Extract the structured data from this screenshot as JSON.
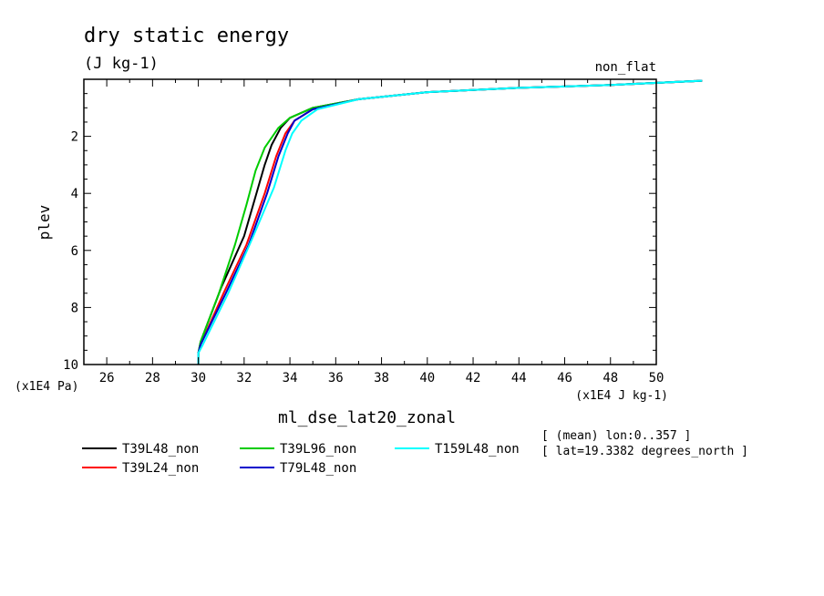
{
  "chart_data": {
    "type": "line",
    "title": "dry static energy",
    "units": "(J kg-1)",
    "corner_label": "non_flat",
    "xlabel": "ml_dse_lat20_zonal",
    "ylabel": "plev",
    "x_unit_label": "(x1E4 J kg-1)",
    "y_unit_label": "(x1E4 Pa)",
    "xlim": [
      25,
      50
    ],
    "ylim": [
      10,
      0
    ],
    "y_axis_inverted": true,
    "x_ticks": [
      26,
      28,
      30,
      32,
      34,
      36,
      38,
      40,
      42,
      44,
      46,
      48,
      50
    ],
    "y_ticks": [
      2,
      4,
      6,
      8,
      10
    ],
    "info_lines": [
      "[ (mean) lon:0..357 ]",
      "[ lat=19.3382 degrees_north ]"
    ],
    "series": [
      {
        "name": "T39L48_non",
        "color": "#000000",
        "points": [
          [
            30.0,
            10.0
          ],
          [
            30.0,
            9.6
          ],
          [
            30.1,
            9.2
          ],
          [
            31.0,
            7.3
          ],
          [
            32.0,
            5.5
          ],
          [
            32.9,
            3.0
          ],
          [
            33.2,
            2.3
          ],
          [
            33.6,
            1.7
          ],
          [
            34.0,
            1.35
          ],
          [
            35.0,
            1.0
          ],
          [
            37.0,
            0.7
          ],
          [
            40.0,
            0.45
          ],
          [
            44.0,
            0.3
          ],
          [
            48.0,
            0.2
          ],
          [
            52.0,
            0.05
          ]
        ]
      },
      {
        "name": "T39L24_non",
        "color": "#ff0000",
        "points": [
          [
            30.0,
            10.0
          ],
          [
            30.0,
            9.6
          ],
          [
            30.1,
            9.3
          ],
          [
            31.1,
            7.5
          ],
          [
            32.1,
            5.8
          ],
          [
            32.9,
            4.0
          ],
          [
            33.4,
            2.7
          ],
          [
            33.8,
            1.9
          ],
          [
            34.2,
            1.45
          ],
          [
            35.0,
            1.05
          ],
          [
            37.0,
            0.7
          ],
          [
            40.0,
            0.45
          ],
          [
            44.0,
            0.3
          ],
          [
            48.0,
            0.2
          ],
          [
            52.0,
            0.05
          ]
        ]
      },
      {
        "name": "T39L96_non",
        "color": "#00cc00",
        "points": [
          [
            30.0,
            10.0
          ],
          [
            30.0,
            9.6
          ],
          [
            30.1,
            9.2
          ],
          [
            30.9,
            7.5
          ],
          [
            31.6,
            5.8
          ],
          [
            32.1,
            4.4
          ],
          [
            32.5,
            3.2
          ],
          [
            32.9,
            2.4
          ],
          [
            33.5,
            1.7
          ],
          [
            34.0,
            1.35
          ],
          [
            35.0,
            1.0
          ],
          [
            37.0,
            0.7
          ],
          [
            40.0,
            0.45
          ],
          [
            44.0,
            0.3
          ],
          [
            48.0,
            0.2
          ],
          [
            52.0,
            0.05
          ]
        ]
      },
      {
        "name": "T79L48_non",
        "color": "#0000cc",
        "points": [
          [
            30.0,
            10.0
          ],
          [
            30.0,
            9.6
          ],
          [
            30.1,
            9.3
          ],
          [
            31.2,
            7.5
          ],
          [
            32.2,
            5.8
          ],
          [
            33.0,
            4.0
          ],
          [
            33.5,
            2.7
          ],
          [
            33.9,
            1.9
          ],
          [
            34.2,
            1.45
          ],
          [
            35.0,
            1.05
          ],
          [
            37.0,
            0.7
          ],
          [
            40.0,
            0.45
          ],
          [
            44.0,
            0.3
          ],
          [
            48.0,
            0.2
          ],
          [
            52.0,
            0.05
          ]
        ]
      },
      {
        "name": "T159L48_non",
        "color": "#00ffff",
        "points": [
          [
            30.0,
            10.0
          ],
          [
            30.0,
            9.6
          ],
          [
            30.2,
            9.3
          ],
          [
            31.3,
            7.5
          ],
          [
            32.4,
            5.5
          ],
          [
            33.3,
            3.8
          ],
          [
            33.8,
            2.5
          ],
          [
            34.1,
            1.9
          ],
          [
            34.5,
            1.45
          ],
          [
            35.2,
            1.05
          ],
          [
            37.0,
            0.7
          ],
          [
            40.0,
            0.45
          ],
          [
            44.0,
            0.3
          ],
          [
            48.0,
            0.2
          ],
          [
            52.0,
            0.05
          ]
        ]
      }
    ]
  }
}
